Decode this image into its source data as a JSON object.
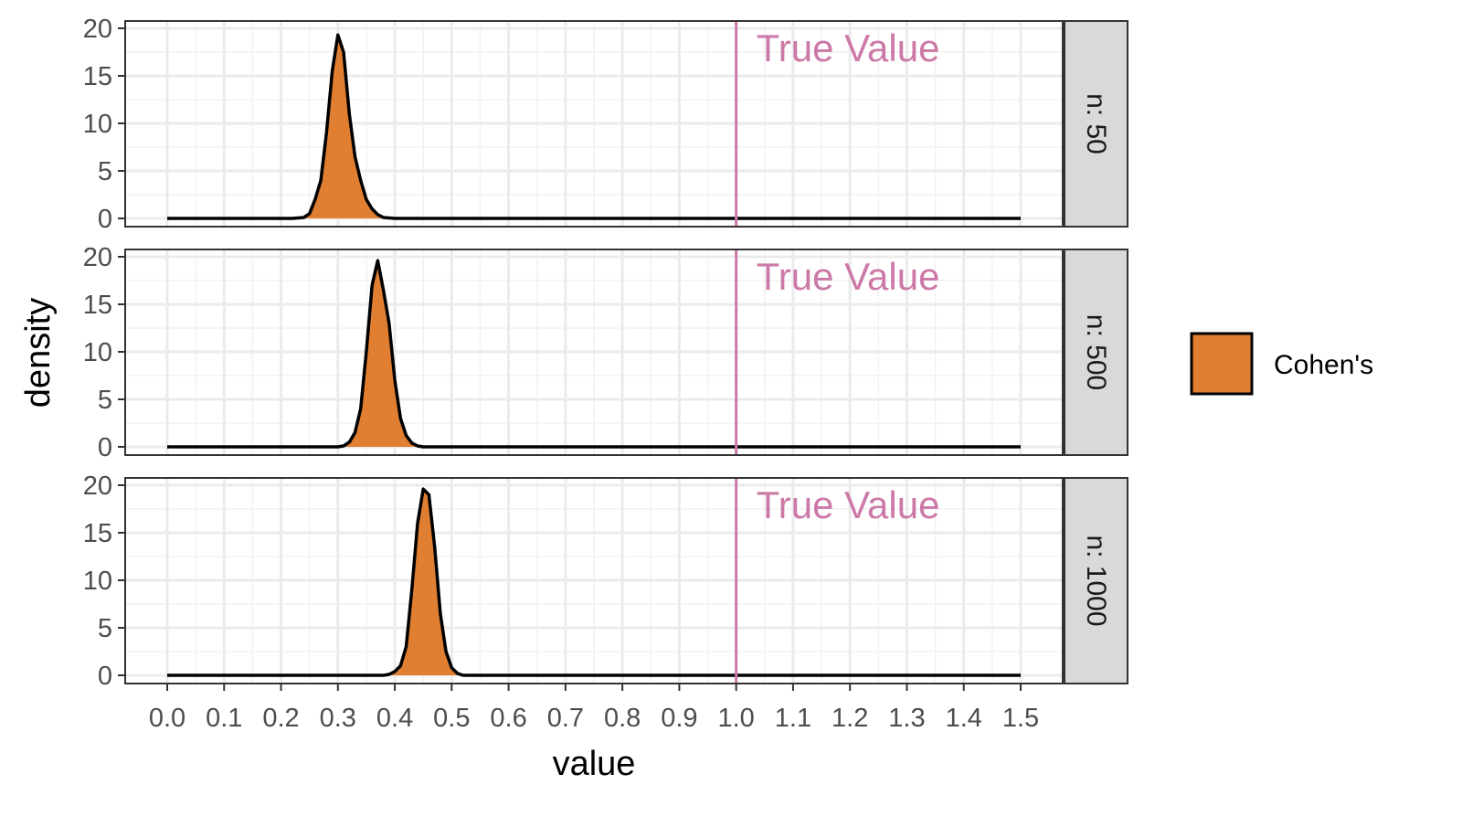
{
  "chart_data": {
    "type": "area",
    "facet_by": "n",
    "xlabel": "value",
    "ylabel": "density",
    "xlim": [
      0,
      1.5
    ],
    "ylim": [
      0,
      20
    ],
    "x_ticks": [
      "0.0",
      "0.1",
      "0.2",
      "0.3",
      "0.4",
      "0.5",
      "0.6",
      "0.7",
      "0.8",
      "0.9",
      "1.0",
      "1.1",
      "1.2",
      "1.3",
      "1.4",
      "1.5"
    ],
    "y_ticks": [
      "0",
      "5",
      "10",
      "15",
      "20"
    ],
    "grid": true,
    "legend": {
      "position": "right",
      "entries": [
        {
          "label": "Cohen's",
          "fill": "#E07F32"
        }
      ]
    },
    "reference_line": {
      "x": 1.0,
      "label": "True Value",
      "color": "#CC79A7"
    },
    "fill_color": "#E07F32",
    "line_color": "#000000",
    "facets": [
      {
        "strip_label": "n: 50",
        "x": [
          0.0,
          0.22,
          0.24,
          0.25,
          0.26,
          0.27,
          0.28,
          0.29,
          0.3,
          0.31,
          0.32,
          0.33,
          0.34,
          0.35,
          0.36,
          0.37,
          0.38,
          0.4,
          1.5
        ],
        "density": [
          0.0,
          0.0,
          0.1,
          0.5,
          2.0,
          4.0,
          9.0,
          15.5,
          19.3,
          17.5,
          11.0,
          6.5,
          4.0,
          2.0,
          1.0,
          0.4,
          0.1,
          0.0,
          0.0
        ]
      },
      {
        "strip_label": "n: 500",
        "x": [
          0.0,
          0.3,
          0.31,
          0.32,
          0.33,
          0.34,
          0.35,
          0.36,
          0.37,
          0.38,
          0.39,
          0.4,
          0.41,
          0.42,
          0.43,
          0.44,
          0.45,
          1.5
        ],
        "density": [
          0.0,
          0.0,
          0.1,
          0.5,
          1.5,
          4.0,
          10.0,
          17.0,
          19.6,
          16.5,
          13.0,
          7.0,
          3.0,
          1.2,
          0.4,
          0.1,
          0.0,
          0.0
        ]
      },
      {
        "strip_label": "n: 1000",
        "x": [
          0.0,
          0.38,
          0.39,
          0.4,
          0.41,
          0.42,
          0.43,
          0.44,
          0.45,
          0.46,
          0.47,
          0.48,
          0.49,
          0.5,
          0.51,
          0.52,
          1.5
        ],
        "density": [
          0.0,
          0.0,
          0.1,
          0.4,
          1.0,
          3.0,
          9.0,
          16.0,
          19.6,
          19.0,
          13.5,
          6.5,
          2.5,
          0.8,
          0.2,
          0.0,
          0.0
        ]
      }
    ]
  }
}
